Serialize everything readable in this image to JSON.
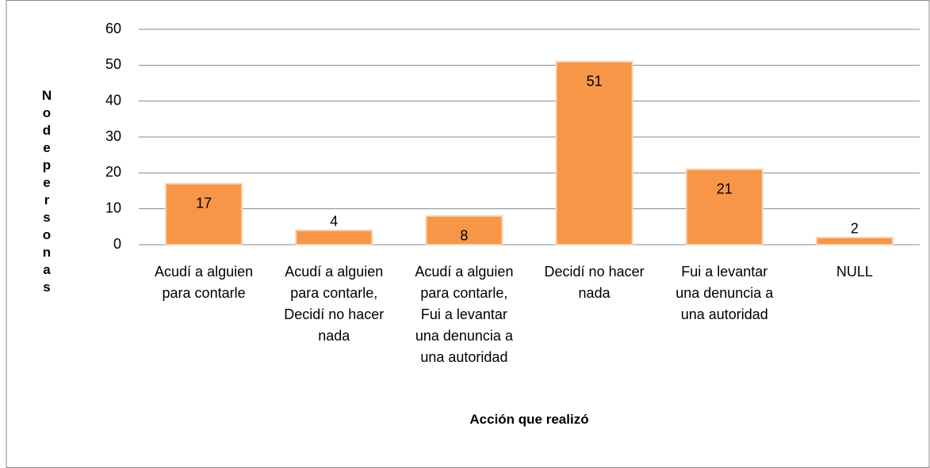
{
  "chart_data": {
    "type": "bar",
    "x_label": "Acción que realizó",
    "y_label": "No de personas",
    "categories": [
      "Acudí a alguien para contarle",
      "Acudí a alguien para contarle, Decidí no hacer nada",
      "Acudí a alguien para contarle, Fui a levantar una denuncia a una autoridad",
      "Decidí no hacer nada",
      "Fui a levantar una denuncia a una autoridad",
      "NULL"
    ],
    "values": [
      17,
      4,
      8,
      51,
      21,
      2
    ],
    "color": "#f79646",
    "ylim": [
      0,
      60
    ],
    "yticks": [
      0,
      10,
      20,
      30,
      40,
      50,
      60
    ],
    "grid": true
  }
}
